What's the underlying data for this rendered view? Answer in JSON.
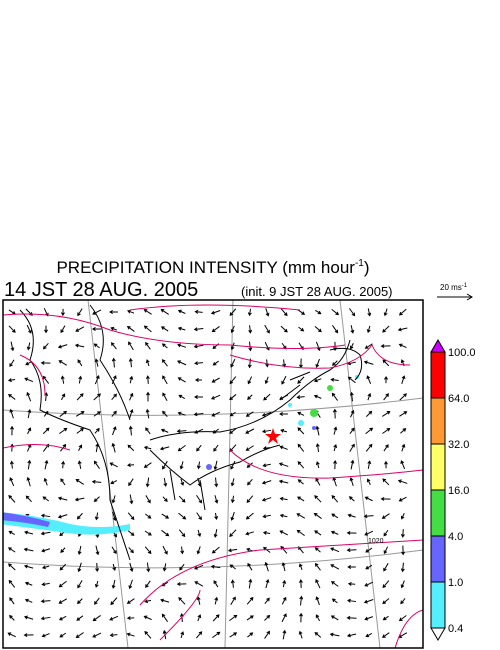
{
  "header": {
    "title": {
      "text": "PRECIPITATION INTENSITY (mm hour",
      "superscript": "-1",
      "close": ")"
    },
    "valid_time": "14 JST 28 AUG. 2005",
    "init_time": "(init. 9 JST 28 AUG. 2005)"
  },
  "wind_legend": {
    "text": "20 ms",
    "superscript": "-1"
  },
  "map": {
    "isobar_label": "1020"
  },
  "colorbar": {
    "labels": [
      "100.0",
      "64.0",
      "32.0",
      "16.0",
      "4.0",
      "1.0",
      "0.4"
    ],
    "colors": [
      "#ff0000",
      "#ff9933",
      "#ffff66",
      "#44dd44",
      "#6666ff",
      "#55eeff"
    ],
    "over_color": "#cc00ff",
    "under_color": "#ffffff"
  }
}
